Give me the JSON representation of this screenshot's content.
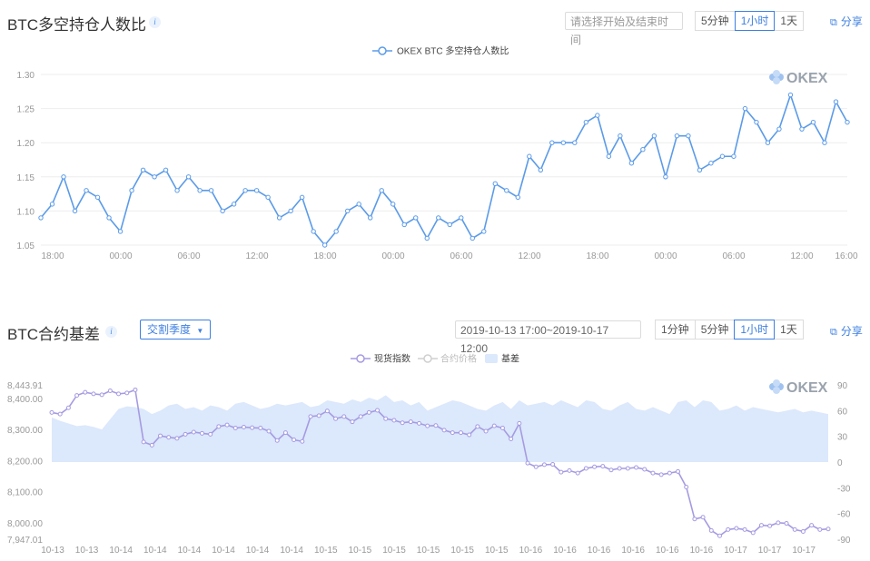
{
  "chart1": {
    "title": "BTC多空持仓人数比",
    "date_placeholder": "请选择开始及结束时间",
    "intervals": [
      "5分钟",
      "1小时",
      "1天"
    ],
    "active_interval": "1小时",
    "share_label": "分享",
    "logo_text": "OKEX",
    "chart_data": {
      "type": "line",
      "legend": [
        "OKEX BTC 多空持仓人数比"
      ],
      "legend_position": "top-center",
      "grid": true,
      "ylim": [
        1.05,
        1.3
      ],
      "yticks": [
        "1.30",
        "1.25",
        "1.20",
        "1.15",
        "1.10",
        "1.05"
      ],
      "xticks": [
        "18:00",
        "00:00",
        "06:00",
        "12:00",
        "18:00",
        "00:00",
        "06:00",
        "12:00",
        "18:00",
        "00:00",
        "06:00",
        "12:00",
        "16:00"
      ],
      "color": "#5b9be8",
      "series": [
        {
          "name": "OKEX BTC 多空持仓人数比",
          "values": [
            1.09,
            1.11,
            1.15,
            1.1,
            1.13,
            1.12,
            1.09,
            1.07,
            1.13,
            1.16,
            1.15,
            1.16,
            1.13,
            1.15,
            1.13,
            1.13,
            1.1,
            1.11,
            1.13,
            1.13,
            1.12,
            1.09,
            1.1,
            1.12,
            1.07,
            1.05,
            1.07,
            1.1,
            1.11,
            1.09,
            1.13,
            1.11,
            1.08,
            1.09,
            1.06,
            1.09,
            1.08,
            1.09,
            1.06,
            1.07,
            1.14,
            1.13,
            1.12,
            1.18,
            1.16,
            1.2,
            1.2,
            1.2,
            1.23,
            1.24,
            1.18,
            1.21,
            1.17,
            1.19,
            1.21,
            1.15,
            1.21,
            1.21,
            1.16,
            1.17,
            1.18,
            1.18,
            1.25,
            1.23,
            1.2,
            1.22,
            1.27,
            1.22,
            1.23,
            1.2,
            1.26,
            1.23
          ]
        }
      ]
    }
  },
  "chart2": {
    "title": "BTC合约基差",
    "dropdown_label": "交割季度",
    "date_range": "2019-10-13 17:00~2019-10-17 12:00",
    "intervals": [
      "1分钟",
      "5分钟",
      "1小时",
      "1天"
    ],
    "active_interval": "1小时",
    "share_label": "分享",
    "logo_text": "OKEX",
    "chart_data": {
      "type": "line",
      "legend": [
        "现货指数",
        "合约价格",
        "基差"
      ],
      "legend_position": "top-center",
      "grid": false,
      "ylim_left": [
        7947.01,
        8443.91
      ],
      "yticks_left": [
        "8,443.91",
        "8,400.00",
        "8,300.00",
        "8,200.00",
        "8,100.00",
        "8,000.00",
        "7,947.01"
      ],
      "ylim_right": [
        -90,
        90
      ],
      "yticks_right": [
        "90",
        "60",
        "30",
        "0",
        "-30",
        "-60",
        "-90"
      ],
      "xticks": [
        "10-13",
        "10-13",
        "10-14",
        "10-14",
        "10-14",
        "10-14",
        "10-14",
        "10-14",
        "10-15",
        "10-15",
        "10-15",
        "10-15",
        "10-15",
        "10-15",
        "10-16",
        "10-16",
        "10-16",
        "10-16",
        "10-16",
        "10-16",
        "10-17",
        "10-17",
        "10-17"
      ],
      "colors": {
        "spot": "#a59be2",
        "futures": "#c8c8c8",
        "basis": "#dce8fb"
      },
      "series": [
        {
          "name": "现货指数",
          "values": [
            8355,
            8350,
            8370,
            8410,
            8420,
            8415,
            8412,
            8425,
            8415,
            8418,
            8428,
            8260,
            8250,
            8280,
            8275,
            8272,
            8285,
            8292,
            8288,
            8285,
            8310,
            8315,
            8305,
            8308,
            8306,
            8305,
            8295,
            8265,
            8290,
            8267,
            8262,
            8342,
            8345,
            8360,
            8335,
            8342,
            8325,
            8342,
            8355,
            8362,
            8335,
            8330,
            8322,
            8325,
            8320,
            8312,
            8313,
            8298,
            8290,
            8290,
            8283,
            8310,
            8295,
            8312,
            8305,
            8270,
            8320,
            8192,
            8180,
            8187,
            8188,
            8163,
            8168,
            8160,
            8175,
            8180,
            8182,
            8170,
            8175,
            8175,
            8178,
            8172,
            8160,
            8155,
            8160,
            8165,
            8115,
            8012,
            8018,
            7975,
            7958,
            7978,
            7982,
            7978,
            7968,
            7992,
            7990,
            8000,
            7998,
            7978,
            7972,
            7992,
            7978,
            7980
          ]
        },
        {
          "name": "基差",
          "values": [
            52,
            48,
            45,
            42,
            43,
            41,
            38,
            50,
            62,
            65,
            64,
            62,
            56,
            60,
            66,
            68,
            62,
            64,
            60,
            66,
            64,
            60,
            68,
            70,
            66,
            62,
            64,
            68,
            66,
            68,
            70,
            64,
            66,
            72,
            70,
            68,
            73,
            70,
            75,
            72,
            78,
            70,
            72,
            66,
            70,
            60,
            64,
            68,
            72,
            70,
            66,
            62,
            60,
            66,
            70,
            62,
            72,
            66,
            68,
            70,
            66,
            72,
            68,
            64,
            72,
            70,
            62,
            60,
            66,
            70,
            62,
            60,
            64,
            60,
            56,
            70,
            72,
            64,
            72,
            70,
            60,
            62,
            66,
            60,
            64,
            62,
            60,
            58,
            60,
            62,
            58,
            60,
            58,
            56
          ]
        }
      ]
    }
  }
}
